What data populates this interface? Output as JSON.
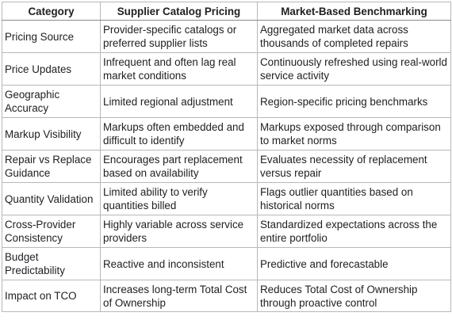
{
  "table": {
    "headers": [
      "Category",
      "Supplier Catalog Pricing",
      "Market-Based Benchmarking"
    ],
    "rows": [
      [
        "Pricing Source",
        "Provider-specific catalogs or preferred supplier lists",
        "Aggregated market data across thousands of completed repairs"
      ],
      [
        "Price Updates",
        "Infrequent and often lag real market conditions",
        "Continuously refreshed using real-world service activity"
      ],
      [
        "Geographic Accuracy",
        "Limited regional adjustment",
        "Region-specific pricing benchmarks"
      ],
      [
        "Markup Visibility",
        "Markups often embedded and difficult to identify",
        "Markups exposed through comparison to market norms"
      ],
      [
        "Repair vs Replace Guidance",
        "Encourages part replacement based on availability",
        "Evaluates necessity of replacement versus repair"
      ],
      [
        "Quantity Validation",
        "Limited ability to verify quantities billed",
        "Flags outlier quantities based on historical norms"
      ],
      [
        "Cross-Provider Consistency",
        "Highly variable across service providers",
        "Standardized expectations across the entire portfolio"
      ],
      [
        "Budget Predictability",
        "Reactive and inconsistent",
        "Predictive and forecastable"
      ],
      [
        "Impact on TCO",
        "Increases long-term Total Cost of Ownership",
        "Reduces Total Cost of Ownership through proactive control"
      ]
    ]
  }
}
